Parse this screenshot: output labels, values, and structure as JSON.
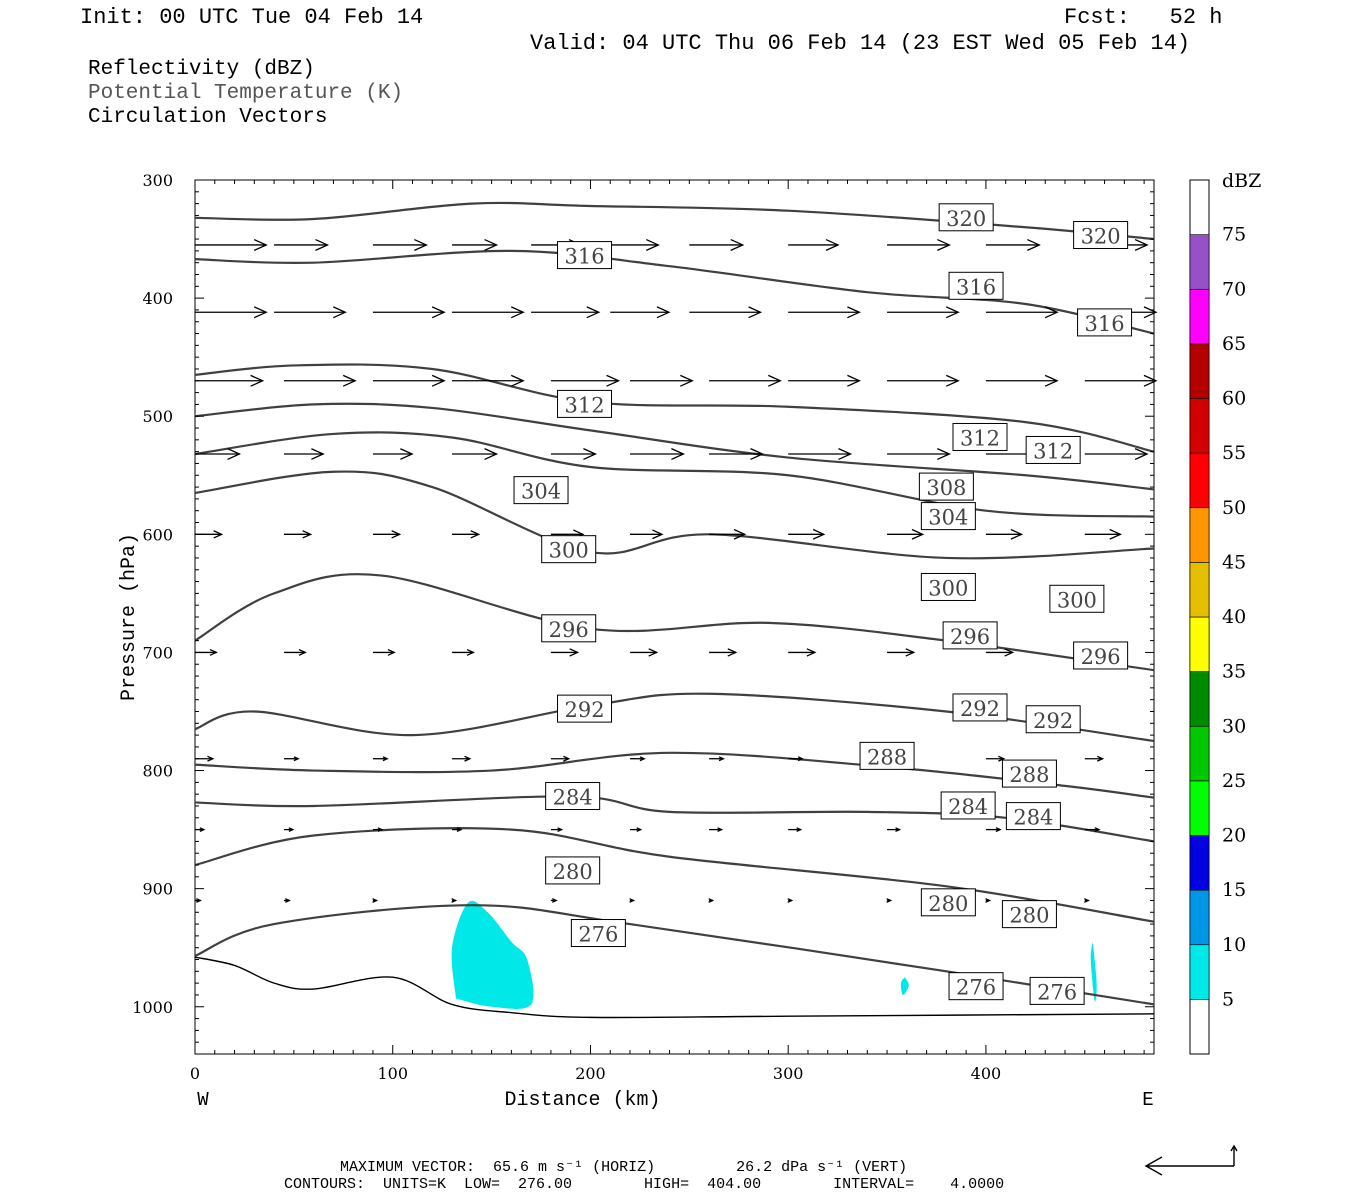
{
  "header": {
    "init": "Init: 00 UTC Tue 04 Feb 14",
    "fcst": "Fcst:   52 h",
    "valid": "Valid: 04 UTC Thu 06 Feb 14 (23 EST Wed 05 Feb 14)"
  },
  "fields": {
    "reflectivity": "Reflectivity (dBZ)",
    "theta": "Potential Temperature (K)",
    "vectors": "Circulation Vectors"
  },
  "chart_data": {
    "type": "cross-section",
    "xlabel": "Distance (km)",
    "ylabel": "Pressure (hPa)",
    "xlim": [
      0,
      485
    ],
    "ylim": [
      1040,
      300
    ],
    "x_ticks": [
      0,
      100,
      200,
      300,
      400
    ],
    "y_ticks": [
      300,
      400,
      500,
      600,
      700,
      800,
      900,
      1000
    ],
    "x_end_labels": {
      "left": "W",
      "right": "E"
    },
    "colorbar": {
      "title": "dBZ",
      "ticks": [
        "5",
        "10",
        "15",
        "20",
        "25",
        "30",
        "35",
        "40",
        "45",
        "50",
        "55",
        "60",
        "65",
        "70",
        "75"
      ],
      "colors": [
        "#00e8e8",
        "#0096e6",
        "#0000e0",
        "#00ff00",
        "#00c800",
        "#008a00",
        "#ffff00",
        "#e6be00",
        "#ff9600",
        "#ff0000",
        "#d20000",
        "#b40000",
        "#ff00ff",
        "#9650c8"
      ]
    },
    "contours": [
      {
        "label": "320",
        "points": [
          [
            0,
            332
          ],
          [
            60,
            333
          ],
          [
            140,
            320
          ],
          [
            200,
            322
          ],
          [
            300,
            326
          ],
          [
            420,
            340
          ],
          [
            485,
            350
          ]
        ],
        "labels": [
          [
            390,
            332
          ],
          [
            458,
            347
          ]
        ]
      },
      {
        "label": "316",
        "points": [
          [
            0,
            367
          ],
          [
            60,
            370
          ],
          [
            160,
            360
          ],
          [
            240,
            373
          ],
          [
            340,
            395
          ],
          [
            420,
            405
          ],
          [
            485,
            430
          ]
        ],
        "labels": [
          [
            197,
            364
          ],
          [
            395,
            390
          ],
          [
            460,
            421
          ]
        ]
      },
      {
        "label": "312",
        "points": [
          [
            0,
            465
          ],
          [
            50,
            457
          ],
          [
            120,
            460
          ],
          [
            200,
            488
          ],
          [
            300,
            492
          ],
          [
            420,
            505
          ],
          [
            485,
            530
          ]
        ],
        "labels": [
          [
            197,
            490
          ],
          [
            397,
            518
          ],
          [
            434,
            529
          ]
        ]
      },
      {
        "label": "308",
        "points": [
          [
            0,
            500
          ],
          [
            60,
            490
          ],
          [
            120,
            493
          ],
          [
            200,
            512
          ],
          [
            300,
            535
          ],
          [
            420,
            550
          ],
          [
            485,
            562
          ]
        ],
        "labels": [
          [
            380,
            560
          ]
        ]
      },
      {
        "label": "304",
        "points": [
          [
            0,
            532
          ],
          [
            70,
            515
          ],
          [
            130,
            518
          ],
          [
            200,
            543
          ],
          [
            300,
            550
          ],
          [
            400,
            580
          ],
          [
            485,
            585
          ]
        ],
        "labels": [
          [
            175,
            563
          ],
          [
            381,
            585
          ]
        ]
      },
      {
        "label": "300",
        "points": [
          [
            0,
            565
          ],
          [
            70,
            547
          ],
          [
            120,
            560
          ],
          [
            200,
            615
          ],
          [
            260,
            600
          ],
          [
            380,
            620
          ],
          [
            485,
            612
          ]
        ],
        "labels": [
          [
            189,
            613
          ],
          [
            381,
            645
          ],
          [
            446,
            655
          ]
        ]
      },
      {
        "label": "296",
        "points": [
          [
            0,
            690
          ],
          [
            40,
            650
          ],
          [
            95,
            635
          ],
          [
            200,
            680
          ],
          [
            290,
            675
          ],
          [
            380,
            690
          ],
          [
            485,
            715
          ]
        ],
        "labels": [
          [
            189,
            680
          ],
          [
            392,
            686
          ],
          [
            458,
            703
          ]
        ]
      },
      {
        "label": "292",
        "points": [
          [
            0,
            765
          ],
          [
            30,
            750
          ],
          [
            110,
            770
          ],
          [
            200,
            745
          ],
          [
            260,
            735
          ],
          [
            380,
            750
          ],
          [
            485,
            775
          ]
        ],
        "labels": [
          [
            197,
            748
          ],
          [
            397,
            747
          ],
          [
            434,
            757
          ]
        ]
      },
      {
        "label": "288",
        "points": [
          [
            0,
            795
          ],
          [
            60,
            800
          ],
          [
            150,
            800
          ],
          [
            240,
            785
          ],
          [
            350,
            797
          ],
          [
            440,
            813
          ],
          [
            485,
            823
          ]
        ],
        "labels": [
          [
            350,
            788
          ],
          [
            422,
            803
          ]
        ]
      },
      {
        "label": "284",
        "points": [
          [
            0,
            827
          ],
          [
            60,
            830
          ],
          [
            190,
            822
          ],
          [
            240,
            835
          ],
          [
            340,
            835
          ],
          [
            410,
            840
          ],
          [
            485,
            860
          ]
        ],
        "labels": [
          [
            191,
            822
          ],
          [
            391,
            830
          ],
          [
            424,
            839
          ]
        ]
      },
      {
        "label": "280",
        "points": [
          [
            0,
            880
          ],
          [
            60,
            855
          ],
          [
            160,
            850
          ],
          [
            240,
            873
          ],
          [
            380,
            898
          ],
          [
            485,
            928
          ]
        ],
        "labels": [
          [
            191,
            885
          ],
          [
            381,
            912
          ],
          [
            422,
            922
          ]
        ]
      },
      {
        "label": "276",
        "points": [
          [
            0,
            957
          ],
          [
            40,
            930
          ],
          [
            140,
            914
          ],
          [
            220,
            930
          ],
          [
            380,
            970
          ],
          [
            485,
            998
          ]
        ],
        "labels": [
          [
            204,
            938
          ],
          [
            395,
            983
          ],
          [
            436,
            987
          ]
        ]
      }
    ],
    "surface_pressure_points": [
      [
        0,
        958
      ],
      [
        20,
        965
      ],
      [
        40,
        980
      ],
      [
        60,
        985
      ],
      [
        100,
        975
      ],
      [
        130,
        998
      ],
      [
        160,
        1005
      ],
      [
        200,
        1009
      ],
      [
        300,
        1008
      ],
      [
        485,
        1006
      ]
    ],
    "reflectivity_areas": [
      {
        "range": "5-10",
        "points": [
          [
            132,
            993
          ],
          [
            130,
            950
          ],
          [
            138,
            912
          ],
          [
            148,
            920
          ],
          [
            160,
            945
          ],
          [
            168,
            960
          ],
          [
            170,
            998
          ],
          [
            150,
            1000
          ]
        ]
      },
      {
        "range": "5-10",
        "points": [
          [
            359,
            975
          ],
          [
            361,
            982
          ],
          [
            358,
            990
          ],
          [
            357,
            980
          ]
        ]
      },
      {
        "range": "5-10",
        "points": [
          [
            454,
            945
          ],
          [
            456,
            980
          ],
          [
            455,
            995
          ],
          [
            453,
            960
          ]
        ]
      }
    ],
    "vector_rows": [
      {
        "p": 355,
        "u": [
          [
            0,
            40
          ],
          [
            40,
            30
          ],
          [
            90,
            30
          ],
          [
            130,
            25
          ],
          [
            170,
            28
          ],
          [
            210,
            27
          ],
          [
            250,
            30
          ],
          [
            300,
            28
          ],
          [
            350,
            35
          ],
          [
            400,
            30
          ],
          [
            450,
            35
          ]
        ]
      },
      {
        "p": 412,
        "u": [
          [
            0,
            40
          ],
          [
            40,
            40
          ],
          [
            90,
            40
          ],
          [
            130,
            40
          ],
          [
            170,
            38
          ],
          [
            210,
            33
          ],
          [
            250,
            40
          ],
          [
            300,
            40
          ],
          [
            350,
            40
          ],
          [
            400,
            40
          ],
          [
            450,
            40
          ]
        ]
      },
      {
        "p": 470,
        "u": [
          [
            0,
            38
          ],
          [
            45,
            40
          ],
          [
            90,
            40
          ],
          [
            130,
            40
          ],
          [
            180,
            38
          ],
          [
            220,
            35
          ],
          [
            260,
            40
          ],
          [
            300,
            40
          ],
          [
            350,
            40
          ],
          [
            400,
            40
          ],
          [
            450,
            40
          ]
        ]
      },
      {
        "p": 532,
        "u": [
          [
            0,
            25
          ],
          [
            45,
            22
          ],
          [
            90,
            22
          ],
          [
            130,
            25
          ],
          [
            180,
            25
          ],
          [
            220,
            30
          ],
          [
            260,
            30
          ],
          [
            300,
            35
          ],
          [
            350,
            35
          ],
          [
            400,
            35
          ],
          [
            450,
            35
          ]
        ]
      },
      {
        "p": 600,
        "u": [
          [
            0,
            15
          ],
          [
            45,
            15
          ],
          [
            90,
            15
          ],
          [
            130,
            15
          ],
          [
            180,
            18
          ],
          [
            220,
            18
          ],
          [
            260,
            20
          ],
          [
            300,
            20
          ],
          [
            350,
            20
          ],
          [
            400,
            20
          ],
          [
            450,
            20
          ]
        ]
      },
      {
        "p": 700,
        "u": [
          [
            0,
            12
          ],
          [
            45,
            12
          ],
          [
            90,
            12
          ],
          [
            130,
            12
          ],
          [
            180,
            15
          ],
          [
            220,
            15
          ],
          [
            260,
            15
          ],
          [
            300,
            15
          ],
          [
            350,
            15
          ],
          [
            400,
            15
          ],
          [
            450,
            15
          ]
        ]
      },
      {
        "p": 790,
        "u": [
          [
            0,
            10
          ],
          [
            45,
            8
          ],
          [
            90,
            8
          ],
          [
            130,
            10
          ],
          [
            180,
            10
          ],
          [
            220,
            8
          ],
          [
            260,
            8
          ],
          [
            300,
            8
          ],
          [
            350,
            8
          ],
          [
            400,
            10
          ],
          [
            450,
            10
          ]
        ]
      },
      {
        "p": 850,
        "u": [
          [
            0,
            5
          ],
          [
            45,
            5
          ],
          [
            90,
            5
          ],
          [
            130,
            5
          ],
          [
            180,
            6
          ],
          [
            220,
            6
          ],
          [
            260,
            7
          ],
          [
            300,
            7
          ],
          [
            350,
            7
          ],
          [
            400,
            8
          ],
          [
            450,
            8
          ]
        ]
      },
      {
        "p": 910,
        "u": [
          [
            0,
            3
          ],
          [
            45,
            3
          ],
          [
            90,
            2
          ],
          [
            130,
            2
          ],
          [
            180,
            3
          ],
          [
            220,
            2
          ],
          [
            260,
            2
          ],
          [
            300,
            2
          ],
          [
            350,
            2
          ],
          [
            400,
            2
          ],
          [
            450,
            2
          ]
        ]
      }
    ]
  },
  "footer": {
    "line1": "MAXIMUM VECTOR:  65.6 m s⁻¹ (HORIZ)         26.2 dPa s⁻¹ (VERT)",
    "line2": "CONTOURS:  UNITS=K  LOW=  276.00        HIGH=  404.00        INTERVAL=    4.0000"
  }
}
